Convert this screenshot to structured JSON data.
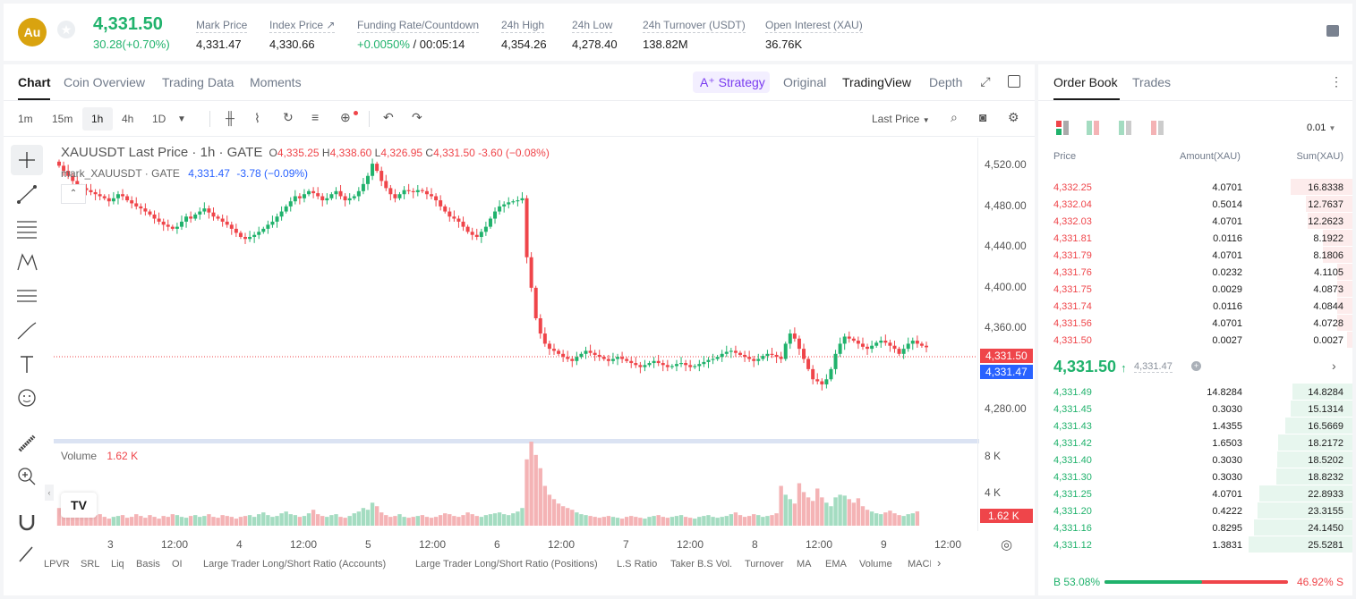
{
  "ticker": {
    "coin_abbr": "Au",
    "last_price": "4,331.50",
    "change": "30.28(+0.70%)",
    "stats": [
      {
        "label": "Mark Price",
        "value": "4,331.47"
      },
      {
        "label": "Index Price ↗",
        "value": "4,330.66"
      },
      {
        "label": "Funding Rate/Countdown",
        "value_green": "+0.0050%",
        "value": " / 00:05:14"
      },
      {
        "label": "24h High",
        "value": "4,354.26"
      },
      {
        "label": "24h Low",
        "value": "4,278.40"
      },
      {
        "label": "24h Turnover (USDT)",
        "value": "138.82M"
      },
      {
        "label": "Open Interest (XAU)",
        "value": "36.76K"
      }
    ]
  },
  "chart_tabs": [
    "Chart",
    "Coin Overview",
    "Trading Data",
    "Moments"
  ],
  "view_tabs": {
    "strategy": "Strategy",
    "original": "Original",
    "tradingview": "TradingView",
    "depth": "Depth"
  },
  "intervals": [
    "1m",
    "15m",
    "1h",
    "4h",
    "1D"
  ],
  "price_type": "Last Price",
  "legend": {
    "symbol": "XAUUSDT Last Price · 1h · GATE",
    "ohlc": [
      {
        "k": "O",
        "v": "4,335.25"
      },
      {
        "k": "H",
        "v": "4,338.60"
      },
      {
        "k": "L",
        "v": "4,326.95"
      },
      {
        "k": "C",
        "v": "4,331.50"
      }
    ],
    "change": "-3.60 (−0.08%)",
    "mark_name": "mark_XAUUSDT · GATE",
    "mark_val": "4,331.47",
    "mark_change": "-3.78 (−0.09%)",
    "volume_label": "Volume",
    "volume_val": "1.62 K"
  },
  "y_axis": [
    "4,520.00",
    "4,480.00",
    "4,440.00",
    "4,400.00",
    "4,360.00",
    "4,280.00"
  ],
  "price_tags": {
    "last": "4,331.50",
    "mark": "4,331.47"
  },
  "vol_axis": [
    "8 K",
    "4 K"
  ],
  "vol_tag": "1.62 K",
  "x_axis": [
    "3",
    "12:00",
    "4",
    "12:00",
    "5",
    "12:00",
    "6",
    "12:00",
    "7",
    "12:00",
    "8",
    "12:00",
    "9",
    "12:00"
  ],
  "indicators": [
    "LPVR",
    "SRL",
    "Liq",
    "Basis",
    "OI",
    "Large Trader Long/Short Ratio (Accounts)",
    "Large Trader Long/Short Ratio (Positions)",
    "L.S Ratio",
    "Taker B.S Vol.",
    "Turnover",
    "MA",
    "EMA",
    "Volume",
    "MACD"
  ],
  "chart_data": {
    "type": "candlestick",
    "interval": "1h",
    "ylim": [
      4270,
      4530
    ],
    "closes": [
      4510,
      4505,
      4500,
      4495,
      4490,
      4488,
      4486,
      4484,
      4482,
      4480,
      4478,
      4475,
      4478,
      4482,
      4480,
      4476,
      4473,
      4470,
      4468,
      4465,
      4462,
      4458,
      4455,
      4452,
      4450,
      4448,
      4450,
      4455,
      4460,
      4458,
      4462,
      4465,
      4468,
      4464,
      4460,
      4458,
      4455,
      4452,
      4448,
      4444,
      4440,
      4438,
      4440,
      4442,
      4445,
      4448,
      4452,
      4455,
      4460,
      4465,
      4470,
      4475,
      4480,
      4478,
      4482,
      4485,
      4483,
      4480,
      4476,
      4478,
      4482,
      4485,
      4480,
      4476,
      4478,
      4480,
      4485,
      4492,
      4500,
      4512,
      4505,
      4495,
      4488,
      4482,
      4478,
      4482,
      4486,
      4485,
      4484,
      4486,
      4485,
      4482,
      4480,
      4476,
      4470,
      4465,
      4460,
      4458,
      4455,
      4450,
      4445,
      4442,
      4440,
      4445,
      4450,
      4458,
      4465,
      4470,
      4472,
      4474,
      4475,
      4476,
      4478,
      4420,
      4390,
      4360,
      4345,
      4335,
      4330,
      4328,
      4325,
      4322,
      4320,
      4318,
      4322,
      4325,
      4328,
      4326,
      4324,
      4322,
      4320,
      4318,
      4320,
      4322,
      4320,
      4318,
      4316,
      4314,
      4312,
      4314,
      4316,
      4318,
      4316,
      4314,
      4312,
      4313,
      4315,
      4316,
      4314,
      4312,
      4313,
      4315,
      4317,
      4319,
      4320,
      4322,
      4325,
      4327,
      4328,
      4326,
      4324,
      4322,
      4320,
      4318,
      4320,
      4323,
      4325,
      4324,
      4322,
      4320,
      4335,
      4345,
      4340,
      4330,
      4320,
      4310,
      4300,
      4298,
      4295,
      4300,
      4310,
      4325,
      4335,
      4342,
      4340,
      4338,
      4335,
      4332,
      4330,
      4333,
      4336,
      4338,
      4336,
      4333,
      4330,
      4325,
      4330,
      4335,
      4338,
      4335,
      4333,
      4331.5
    ],
    "volumes": [
      2,
      1.5,
      1.2,
      1,
      1.4,
      1.1,
      0.9,
      1,
      1.2,
      1.3,
      1,
      0.8,
      1,
      1.1,
      1.2,
      0.9,
      1,
      1.3,
      1.1,
      0.9,
      1.2,
      1,
      0.8,
      1.1,
      1,
      1.3,
      1.2,
      1,
      0.9,
      1.1,
      1.2,
      1,
      1.1,
      1.3,
      1,
      0.9,
      1.2,
      1.1,
      1,
      0.8,
      1,
      1.1,
      1.2,
      1,
      1.3,
      1.5,
      1.2,
      1,
      1.1,
      1.4,
      1.6,
      1.3,
      1.2,
      1,
      1.1,
      1.4,
      1.8,
      1.3,
      1.1,
      1,
      1.2,
      1.3,
      1,
      0.9,
      1.1,
      1.4,
      1.6,
      2,
      1.8,
      2.6,
      2.2,
      1.5,
      1.2,
      1,
      1.1,
      1.3,
      1,
      0.9,
      1,
      1.1,
      1.2,
      1,
      0.9,
      1,
      1.2,
      1.4,
      1.3,
      1.1,
      1,
      1.2,
      1.5,
      1.3,
      1.1,
      1,
      1.2,
      1.3,
      1.4,
      1.5,
      1.3,
      1.2,
      1.4,
      1.6,
      2,
      7.5,
      9.5,
      8,
      6.5,
      4.5,
      3.5,
      3,
      2.5,
      2.2,
      2,
      1.8,
      1.5,
      1.3,
      1.2,
      1.1,
      1,
      0.9,
      1,
      1.1,
      1,
      0.9,
      0.8,
      1,
      1.1,
      1,
      0.9,
      0.8,
      1,
      1.1,
      1.2,
      1,
      0.9,
      1,
      1.1,
      1.2,
      1,
      0.9,
      0.8,
      1,
      1.1,
      1.2,
      1,
      0.9,
      1,
      1.1,
      1.3,
      1.5,
      1.2,
      1,
      1.1,
      1.3,
      1.2,
      1,
      1.1,
      1.2,
      1.4,
      4.5,
      3.5,
      3,
      2.5,
      4.8,
      3.8,
      3.2,
      2.8,
      4.2,
      3.2,
      2.6,
      2.2,
      3.2,
      3.5,
      3.4,
      3,
      2.6,
      3.1,
      2.2,
      1.8,
      1.6,
      1.4,
      1.3,
      1.5,
      1.7,
      1.4,
      1.2,
      1.1,
      1.3,
      1.4,
      1.62
    ]
  },
  "orderbook": {
    "tabs": [
      "Order Book",
      "Trades"
    ],
    "precision": "0.01",
    "headers": [
      "Price",
      "Amount(XAU)",
      "Sum(XAU)"
    ],
    "asks": [
      [
        "4,332.25",
        "4.0701",
        "16.8338"
      ],
      [
        "4,332.04",
        "0.5014",
        "12.7637"
      ],
      [
        "4,332.03",
        "4.0701",
        "12.2623"
      ],
      [
        "4,331.81",
        "0.0116",
        "8.1922"
      ],
      [
        "4,331.79",
        "4.0701",
        "8.1806"
      ],
      [
        "4,331.76",
        "0.0232",
        "4.1105"
      ],
      [
        "4,331.75",
        "0.0029",
        "4.0873"
      ],
      [
        "4,331.74",
        "0.0116",
        "4.0844"
      ],
      [
        "4,331.56",
        "4.0701",
        "4.0728"
      ],
      [
        "4,331.50",
        "0.0027",
        "0.0027"
      ]
    ],
    "mid_price": "4,331.50",
    "mid_mark": "4,331.47",
    "bids": [
      [
        "4,331.49",
        "14.8284",
        "14.8284"
      ],
      [
        "4,331.45",
        "0.3030",
        "15.1314"
      ],
      [
        "4,331.43",
        "1.4355",
        "16.5669"
      ],
      [
        "4,331.42",
        "1.6503",
        "18.2172"
      ],
      [
        "4,331.40",
        "0.3030",
        "18.5202"
      ],
      [
        "4,331.30",
        "0.3030",
        "18.8232"
      ],
      [
        "4,331.25",
        "4.0701",
        "22.8933"
      ],
      [
        "4,331.20",
        "0.4222",
        "23.3155"
      ],
      [
        "4,331.16",
        "0.8295",
        "24.1450"
      ],
      [
        "4,331.12",
        "1.3831",
        "25.5281"
      ]
    ],
    "buy_ratio": "B 53.08%",
    "sell_ratio": "46.92% S",
    "buy_fraction": 0.5308
  },
  "colors": {
    "up": "#20b26c",
    "down": "#ef454a",
    "strategy": "#7a3cf0",
    "mark_tag": "#2962ff"
  }
}
